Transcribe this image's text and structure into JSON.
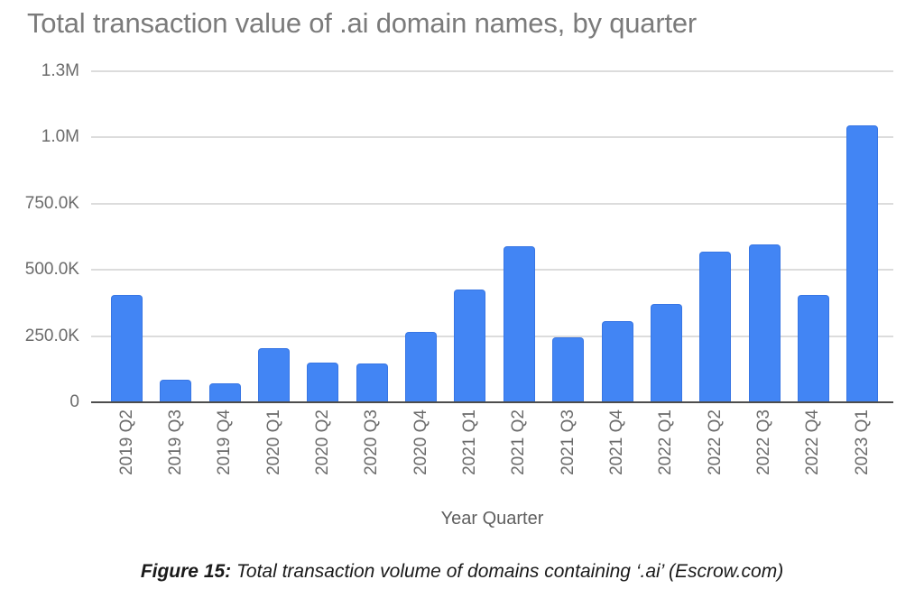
{
  "figure": {
    "title": "Total transaction value of .ai domain names, by quarter",
    "x_axis_title": "Year Quarter",
    "caption_prefix": "Figure 15:",
    "caption_text": " Total transaction volume of domains containing ‘.ai’ (Escrow.com)"
  },
  "chart_data": {
    "type": "bar",
    "title": "Total transaction value of .ai domain names, by quarter",
    "xlabel": "Year Quarter",
    "ylabel": "",
    "categories": [
      "2019 Q2",
      "2019 Q3",
      "2019 Q4",
      "2020 Q1",
      "2020 Q2",
      "2020 Q3",
      "2020 Q4",
      "2021 Q1",
      "2021 Q2",
      "2021 Q3",
      "2021 Q4",
      "2022 Q1",
      "2022 Q2",
      "2022 Q3",
      "2022 Q4",
      "2023 Q1"
    ],
    "values": [
      405000,
      85000,
      70000,
      205000,
      150000,
      145000,
      265000,
      425000,
      590000,
      245000,
      305000,
      370000,
      570000,
      595000,
      405000,
      1045000
    ],
    "ylim": [
      0,
      1250000
    ],
    "yticks": [
      {
        "value": 0,
        "label": "0"
      },
      {
        "value": 250000,
        "label": "250.0K"
      },
      {
        "value": 500000,
        "label": "500.0K"
      },
      {
        "value": 750000,
        "label": "750.0K"
      },
      {
        "value": 1000000,
        "label": "1.0M"
      },
      {
        "value": 1250000,
        "label": "1.3M"
      }
    ],
    "grid": true,
    "legend": "none",
    "bar_color": "#4285f4"
  },
  "colors": {
    "bar": "#4285f4",
    "title_text": "#7b7b7b",
    "axis_text": "#6b6b6b",
    "gridline": "#dcdcdc",
    "baseline": "#4d4d4d",
    "caption_text": "#1a1a1a"
  }
}
